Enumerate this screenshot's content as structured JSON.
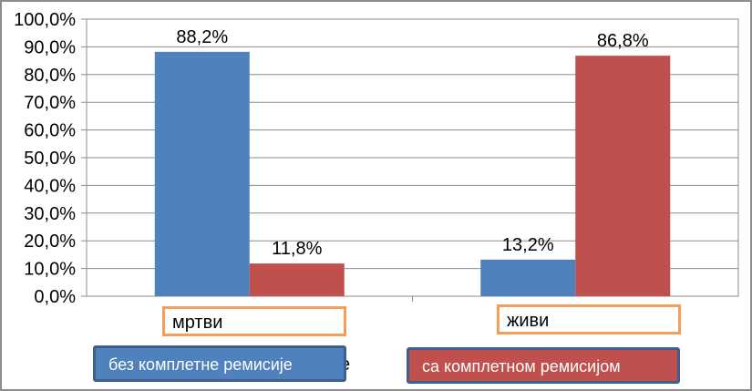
{
  "chart_data": {
    "type": "bar",
    "categories": [
      "мртви",
      "живи"
    ],
    "series": [
      {
        "name": "без комплетне ремисије",
        "values": [
          88.2,
          13.2
        ],
        "labels": [
          "88,2%",
          "13,2%"
        ],
        "color": "#4f81bd"
      },
      {
        "name": "са комплетном ремисијом",
        "values": [
          11.8,
          86.8
        ],
        "labels": [
          "11,8%",
          "86,8%"
        ],
        "color": "#c0504d"
      }
    ],
    "ylim": [
      0,
      100
    ],
    "yticks": [
      "0,0%",
      "10,0%",
      "20,0%",
      "30,0%",
      "40,0%",
      "50,0%",
      "60,0%",
      "70,0%",
      "80,0%",
      "90,0%",
      "100,0%"
    ],
    "grid": true,
    "legend_position": "bottom"
  },
  "category_boxes": {
    "left": "мртви",
    "right": "живи",
    "border_color": "#f59d56"
  },
  "legend": {
    "left": "без комплетне ремисије",
    "right": "са комплетном ремисијом",
    "stray_char": "е"
  }
}
